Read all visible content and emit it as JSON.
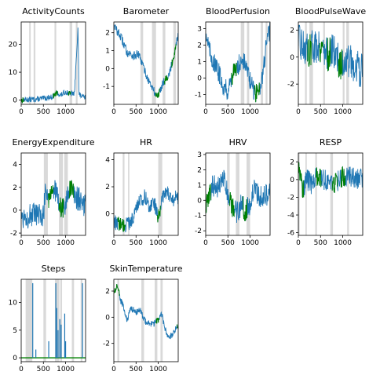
{
  "figure": {
    "colors": {
      "series_main": "#1f77b4",
      "series_highlight": "#008000",
      "bands": "#d9d9d9"
    }
  },
  "chart_data": [
    {
      "type": "line",
      "title": "ActivityCounts",
      "xlim": [
        0,
        1450
      ],
      "ylim": [
        -1.5,
        28
      ],
      "xticks": [
        0,
        500,
        1000
      ],
      "yticks": [
        0,
        10,
        20
      ],
      "grid": false,
      "legend": "none",
      "bands": [
        [
          180,
          215
        ],
        [
          280,
          320
        ],
        [
          750,
          790
        ],
        [
          1090,
          1150
        ],
        [
          1230,
          1270
        ]
      ],
      "highlight_ranges": [
        [
          0,
          60
        ],
        [
          720,
          820
        ],
        [
          1060,
          1120
        ]
      ],
      "anchors": [
        [
          0,
          0
        ],
        [
          100,
          0.2
        ],
        [
          300,
          0.3
        ],
        [
          500,
          0.6
        ],
        [
          700,
          1.2
        ],
        [
          800,
          2.5
        ],
        [
          900,
          1.8
        ],
        [
          1000,
          3.0
        ],
        [
          1100,
          2.2
        ],
        [
          1200,
          2.5
        ],
        [
          1280,
          26.5
        ],
        [
          1300,
          2.0
        ],
        [
          1400,
          1.0
        ]
      ],
      "noise": 1.0
    },
    {
      "type": "line",
      "title": "Barometer",
      "xlim": [
        0,
        1450
      ],
      "ylim": [
        -2.0,
        2.6
      ],
      "xticks": [
        0,
        500,
        1000
      ],
      "yticks": [
        -1,
        0,
        1,
        2
      ],
      "grid": false,
      "legend": "none",
      "bands": [
        [
          600,
          660
        ],
        [
          860,
          950
        ],
        [
          1100,
          1160
        ],
        [
          1340,
          1400
        ]
      ],
      "highlight_ranges": [
        [
          940,
          1040
        ],
        [
          1130,
          1220
        ],
        [
          1300,
          1400
        ]
      ],
      "anchors": [
        [
          0,
          2.4
        ],
        [
          150,
          1.8
        ],
        [
          300,
          0.9
        ],
        [
          450,
          0.7
        ],
        [
          550,
          0.8
        ],
        [
          650,
          0.2
        ],
        [
          750,
          -0.5
        ],
        [
          850,
          -1.0
        ],
        [
          950,
          -1.5
        ],
        [
          1000,
          -1.5
        ],
        [
          1100,
          -0.8
        ],
        [
          1250,
          -0.3
        ],
        [
          1350,
          0.7
        ],
        [
          1450,
          2.0
        ]
      ],
      "noise": 0.25
    },
    {
      "type": "line",
      "title": "BloodPerfusion",
      "xlim": [
        0,
        1450
      ],
      "ylim": [
        -1.6,
        3.4
      ],
      "xticks": [
        0,
        500,
        1000
      ],
      "yticks": [
        -1,
        0,
        1,
        2,
        3
      ],
      "grid": false,
      "legend": "none",
      "bands": [
        [
          790,
          870
        ],
        [
          930,
          980
        ],
        [
          1240,
          1290
        ],
        [
          1350,
          1390
        ]
      ],
      "highlight_ranges": [
        [
          580,
          700
        ],
        [
          1100,
          1220
        ]
      ],
      "anchors": [
        [
          0,
          2.8
        ],
        [
          100,
          1.5
        ],
        [
          200,
          0.8
        ],
        [
          300,
          0.3
        ],
        [
          400,
          -0.5
        ],
        [
          500,
          -0.8
        ],
        [
          600,
          0.2
        ],
        [
          700,
          0.5
        ],
        [
          800,
          1.2
        ],
        [
          900,
          0.8
        ],
        [
          1000,
          -0.2
        ],
        [
          1100,
          -0.9
        ],
        [
          1200,
          -0.8
        ],
        [
          1300,
          0.5
        ],
        [
          1400,
          2.8
        ]
      ],
      "noise": 0.6
    },
    {
      "type": "line",
      "title": "BloodPulseWave",
      "xlim": [
        0,
        1450
      ],
      "ylim": [
        -3.5,
        2.6
      ],
      "xticks": [
        0,
        500,
        1000
      ],
      "yticks": [
        -2,
        0,
        2
      ],
      "grid": false,
      "legend": "none",
      "bands": [
        [
          150,
          190
        ],
        [
          250,
          330
        ],
        [
          560,
          600
        ],
        [
          1000,
          1040
        ],
        [
          1080,
          1140
        ]
      ],
      "highlight_ranges": [
        [
          200,
          290
        ],
        [
          480,
          560
        ],
        [
          650,
          730
        ],
        [
          900,
          990
        ]
      ],
      "anchors": [
        [
          0,
          1.2
        ],
        [
          200,
          0.5
        ],
        [
          350,
          0.8
        ],
        [
          500,
          0.9
        ],
        [
          650,
          0.2
        ],
        [
          800,
          0.5
        ],
        [
          950,
          -0.5
        ],
        [
          1100,
          -0.3
        ],
        [
          1250,
          -0.5
        ],
        [
          1400,
          -1.0
        ]
      ],
      "noise": 1.3
    },
    {
      "type": "line",
      "title": "EnergyExpenditure",
      "xlim": [
        0,
        1450
      ],
      "ylim": [
        -2.2,
        5.0
      ],
      "xticks": [
        0,
        500,
        1000
      ],
      "yticks": [
        -2,
        0,
        2,
        4
      ],
      "grid": false,
      "legend": "none",
      "bands": [
        [
          510,
          600
        ],
        [
          850,
          940
        ],
        [
          970,
          1050
        ]
      ],
      "highlight_ranges": [
        [
          600,
          720
        ],
        [
          850,
          950
        ],
        [
          1080,
          1180
        ]
      ],
      "anchors": [
        [
          0,
          -0.5
        ],
        [
          400,
          -0.5
        ],
        [
          500,
          -0.5
        ],
        [
          560,
          2.5
        ],
        [
          600,
          1.0
        ],
        [
          700,
          2.0
        ],
        [
          800,
          1.5
        ],
        [
          900,
          0.0
        ],
        [
          1000,
          0.5
        ],
        [
          1100,
          1.8
        ],
        [
          1200,
          1.2
        ],
        [
          1300,
          1.0
        ],
        [
          1400,
          0.5
        ]
      ],
      "noise": 1.1
    },
    {
      "type": "line",
      "title": "HR",
      "xlim": [
        0,
        1450
      ],
      "ylim": [
        -1.6,
        4.5
      ],
      "xticks": [
        0,
        500,
        1000
      ],
      "yticks": [
        0,
        2,
        4
      ],
      "grid": false,
      "legend": "none",
      "bands": [
        [
          200,
          240
        ],
        [
          320,
          350
        ],
        [
          1000,
          1090
        ]
      ],
      "highlight_ranges": [
        [
          80,
          260
        ],
        [
          980,
          1050
        ]
      ],
      "anchors": [
        [
          0,
          -0.6
        ],
        [
          200,
          -0.9
        ],
        [
          300,
          -0.8
        ],
        [
          400,
          -0.5
        ],
        [
          550,
          0.8
        ],
        [
          700,
          1.3
        ],
        [
          800,
          0.5
        ],
        [
          900,
          1.0
        ],
        [
          1000,
          -0.3
        ],
        [
          1100,
          1.2
        ],
        [
          1200,
          1.6
        ],
        [
          1300,
          1.0
        ],
        [
          1400,
          1.2
        ]
      ],
      "noise": 0.55
    },
    {
      "type": "line",
      "title": "HRV",
      "xlim": [
        0,
        1450
      ],
      "ylim": [
        -2.3,
        3.1
      ],
      "xticks": [
        0,
        500,
        1000
      ],
      "yticks": [
        -2,
        -1,
        0,
        1,
        2,
        3
      ],
      "grid": false,
      "legend": "none",
      "bands": [
        [
          480,
          540
        ],
        [
          680,
          760
        ],
        [
          920,
          1000
        ]
      ],
      "highlight_ranges": [
        [
          0,
          120
        ],
        [
          540,
          640
        ],
        [
          840,
          930
        ]
      ],
      "anchors": [
        [
          0,
          -0.5
        ],
        [
          150,
          1.0
        ],
        [
          300,
          0.8
        ],
        [
          400,
          1.5
        ],
        [
          500,
          0.3
        ],
        [
          600,
          -0.5
        ],
        [
          700,
          -0.8
        ],
        [
          800,
          -0.3
        ],
        [
          900,
          -0.7
        ],
        [
          1000,
          -0.2
        ],
        [
          1100,
          0.8
        ],
        [
          1200,
          0.3
        ],
        [
          1300,
          0.2
        ],
        [
          1400,
          0.4
        ]
      ],
      "noise": 0.75
    },
    {
      "type": "line",
      "title": "RESP",
      "xlim": [
        0,
        1450
      ],
      "ylim": [
        -6.3,
        3.0
      ],
      "xticks": [
        0,
        500,
        1000
      ],
      "yticks": [
        -6,
        -4,
        -2,
        0,
        2
      ],
      "grid": false,
      "legend": "none",
      "bands": [
        [
          0,
          30
        ],
        [
          160,
          190
        ],
        [
          380,
          420
        ],
        [
          720,
          780
        ],
        [
          1100,
          1140
        ]
      ],
      "highlight_ranges": [
        [
          0,
          120
        ],
        [
          400,
          520
        ],
        [
          760,
          880
        ],
        [
          960,
          1060
        ]
      ],
      "anchors": [
        [
          0,
          2.0
        ],
        [
          100,
          -1.0
        ],
        [
          200,
          0.0
        ],
        [
          300,
          -0.5
        ],
        [
          400,
          0.3
        ],
        [
          600,
          0.0
        ],
        [
          800,
          -0.5
        ],
        [
          1000,
          0.3
        ],
        [
          1200,
          0.4
        ],
        [
          1400,
          0.0
        ]
      ],
      "noise": 1.2
    },
    {
      "type": "line",
      "title": "Steps",
      "xlim": [
        0,
        1450
      ],
      "ylim": [
        -0.7,
        14.2
      ],
      "xticks": [
        0,
        500,
        1000
      ],
      "yticks": [
        0,
        5,
        10
      ],
      "grid": false,
      "legend": "none",
      "bands": [
        [
          100,
          250
        ],
        [
          500,
          560
        ],
        [
          760,
          860
        ],
        [
          880,
          920
        ],
        [
          1140,
          1190
        ],
        [
          1340,
          1380
        ]
      ],
      "highlight_ranges": [
        [
          0,
          1450
        ]
      ],
      "spikes": [
        [
          260,
          13.5
        ],
        [
          330,
          1.5
        ],
        [
          620,
          3.0
        ],
        [
          780,
          13.5
        ],
        [
          800,
          9.0
        ],
        [
          830,
          5.0
        ],
        [
          870,
          7.0
        ],
        [
          900,
          6.0
        ],
        [
          980,
          8.0
        ],
        [
          1000,
          3.0
        ],
        [
          1380,
          13.5
        ]
      ],
      "anchors": [
        [
          0,
          0
        ],
        [
          1450,
          0
        ]
      ],
      "noise": 0
    },
    {
      "type": "line",
      "title": "SkinTemperature",
      "xlim": [
        0,
        1450
      ],
      "ylim": [
        -3.4,
        2.9
      ],
      "xticks": [
        0,
        500,
        1000
      ],
      "yticks": [
        -2,
        0,
        2
      ],
      "grid": false,
      "legend": "none",
      "bands": [
        [
          80,
          120
        ],
        [
          620,
          680
        ],
        [
          920,
          980
        ],
        [
          1050,
          1100
        ]
      ],
      "highlight_ranges": [
        [
          0,
          130
        ],
        [
          950,
          1020
        ],
        [
          1420,
          1450
        ]
      ],
      "anchors": [
        [
          0,
          1.8
        ],
        [
          80,
          2.5
        ],
        [
          150,
          1.3
        ],
        [
          220,
          0.8
        ],
        [
          300,
          -0.3
        ],
        [
          380,
          0.7
        ],
        [
          500,
          0.4
        ],
        [
          600,
          0.5
        ],
        [
          700,
          -0.3
        ],
        [
          800,
          -0.5
        ],
        [
          900,
          -0.5
        ],
        [
          1000,
          -0.2
        ],
        [
          1080,
          0.2
        ],
        [
          1200,
          -1.5
        ],
        [
          1300,
          -1.4
        ],
        [
          1400,
          -0.8
        ]
      ],
      "noise": 0.25
    }
  ]
}
